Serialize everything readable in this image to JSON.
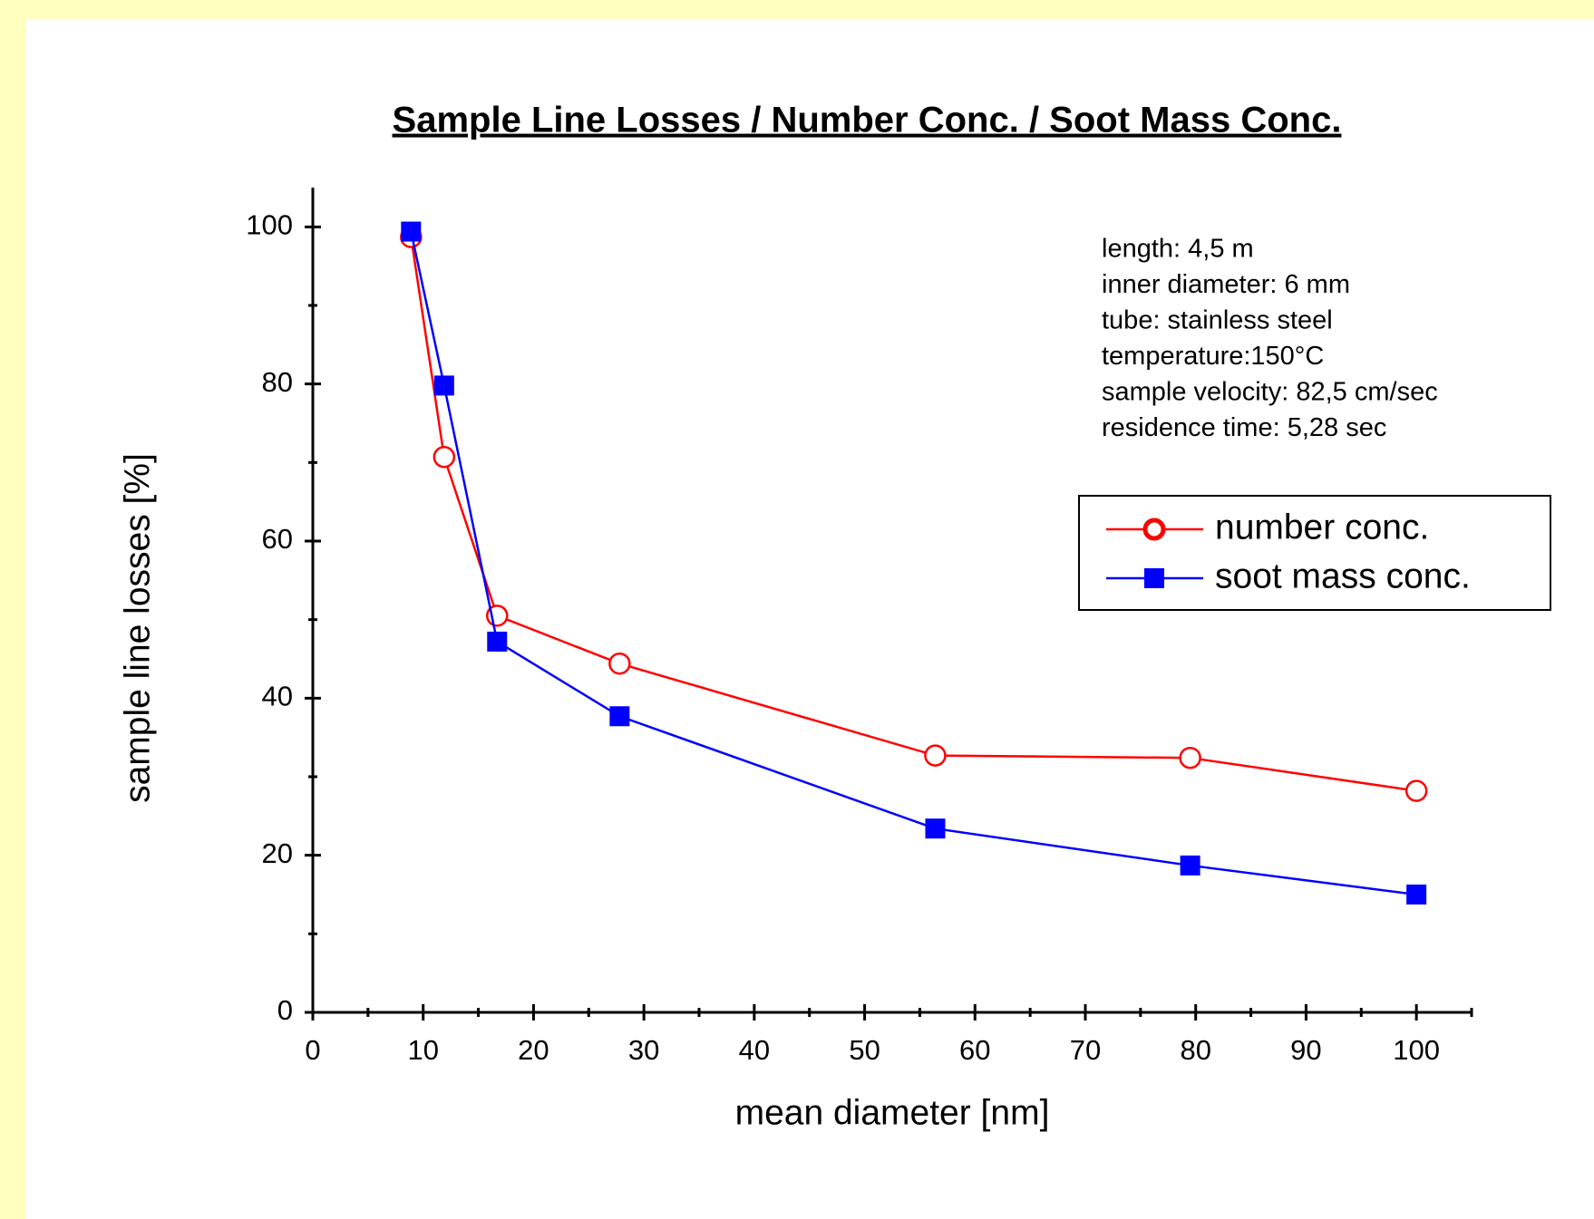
{
  "chart_data": {
    "type": "line",
    "title": "Sample Line Losses / Number Conc. / Soot Mass Conc.",
    "xlabel": "mean diameter [nm]",
    "ylabel": "sample line losses [%]",
    "x": [
      8.9,
      11.9,
      16.7,
      27.8,
      56.4,
      79.5,
      100
    ],
    "series": [
      {
        "name": "number conc.",
        "color": "#ff0000",
        "marker": "open-circle",
        "values": [
          98.7,
          70.7,
          50.5,
          44.4,
          32.7,
          32.4,
          28.2
        ]
      },
      {
        "name": "soot mass conc.",
        "color": "#0000ff",
        "marker": "filled-square",
        "values": [
          99.4,
          79.8,
          47.2,
          37.7,
          23.4,
          18.7,
          15.0
        ]
      }
    ],
    "xlim": [
      0,
      105
    ],
    "ylim": [
      0,
      105
    ],
    "xticks": [
      0,
      10,
      20,
      30,
      40,
      50,
      60,
      70,
      80,
      90,
      100
    ],
    "yticks": [
      0,
      20,
      40,
      60,
      80,
      100
    ],
    "xminorticks": [
      5,
      15,
      25,
      35,
      45,
      55,
      65,
      75,
      85,
      95,
      105
    ],
    "yminorticks": [
      10,
      30,
      50,
      70,
      90
    ],
    "grid": false,
    "legend": "upper right",
    "annotation": [
      "length: 4,5 m",
      "inner diameter: 6 mm",
      "tube: stainless steel",
      "temperature:150°C",
      "sample velocity: 82,5 cm/sec",
      "residence time: 5,28 sec"
    ]
  }
}
